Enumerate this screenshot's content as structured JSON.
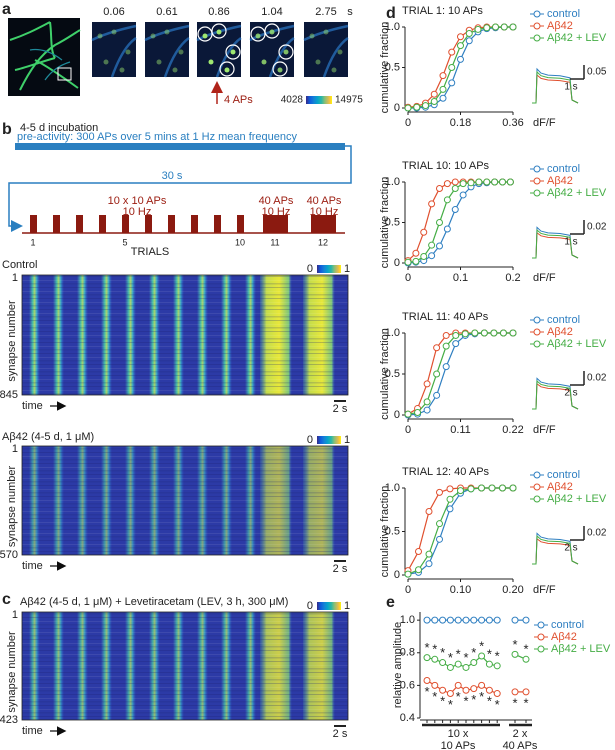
{
  "panel_labels": {
    "a": "a",
    "b": "b",
    "c": "c",
    "d": "d",
    "e": "e"
  },
  "panel_a": {
    "times": [
      "0.06",
      "0.61",
      "0.86",
      "1.04",
      "2.75"
    ],
    "time_unit": "s",
    "stimulus": "4 APs",
    "colorbar": [
      "4028",
      "14975"
    ]
  },
  "panel_b": {
    "incubation": "4-5 d incubation",
    "pre_activity": "pre-activity: 300 APs over 5 mins at 1 Hz mean frequency",
    "interval": "30 s",
    "protocol_labels": [
      [
        "10 x 10 APs",
        "10 Hz"
      ],
      [
        "40 APs",
        "10 Hz"
      ],
      [
        "40 APs",
        "10 Hz"
      ]
    ],
    "trial_numbers": [
      "1",
      "5",
      "10",
      "11",
      "12"
    ],
    "axis_label": "TRIALS"
  },
  "heatmaps": [
    {
      "label": "Control",
      "y_label": "synapse number",
      "y_top": "1",
      "y_bottom": "845",
      "x_label": "time",
      "scale": "2 s",
      "colorbar": [
        "0",
        "1"
      ]
    },
    {
      "label": "Aβ42 (4-5 d, 1 μM)",
      "y_label": "synapse number",
      "y_top": "1",
      "y_bottom": "570",
      "x_label": "time",
      "scale": "2 s",
      "colorbar": [
        "0",
        "1"
      ]
    },
    {
      "label": "Aβ42 (4-5 d, 1 μM) + Levetiracetam (LEV, 3 h, 300 μM)",
      "y_label": "synapse number",
      "y_top": "1",
      "y_bottom": "423",
      "x_label": "time",
      "scale": "2 s",
      "colorbar": [
        "0",
        "1"
      ]
    }
  ],
  "chart_data": [
    {
      "type": "line",
      "title": "TRIAL 1: 10 APs",
      "y_label": "cumulative fraction",
      "x_label": "dF/F",
      "xlim": [
        0,
        0.36
      ],
      "ylim": [
        0,
        1
      ],
      "xticks": [
        0,
        0.18,
        0.36
      ],
      "yticks": [
        0,
        0.5,
        {
          "value": 1,
          "label": "1.0"
        }
      ],
      "x": [
        0,
        0.03,
        0.06,
        0.09,
        0.12,
        0.15,
        0.18,
        0.21,
        0.24,
        0.27,
        0.3,
        0.33,
        0.36
      ],
      "series": [
        {
          "name": "control",
          "color": "#2f7fc1",
          "values": [
            0,
            0,
            0.01,
            0.04,
            0.12,
            0.31,
            0.6,
            0.83,
            0.94,
            0.98,
            0.99,
            1,
            1
          ]
        },
        {
          "name": "Aβ42",
          "color": "#e0502f",
          "values": [
            0.01,
            0.02,
            0.06,
            0.17,
            0.4,
            0.69,
            0.88,
            0.96,
            0.99,
            1,
            1,
            1,
            1
          ]
        },
        {
          "name": "Aβ42 + LEV",
          "color": "#45ad45",
          "values": [
            0,
            0.01,
            0.03,
            0.08,
            0.23,
            0.5,
            0.77,
            0.92,
            0.97,
            0.99,
            1,
            1,
            1
          ]
        }
      ],
      "inset": {
        "y_scale": "0.05",
        "x_scale": "1 s"
      }
    },
    {
      "type": "line",
      "title": "TRIAL 10: 10 APs",
      "y_label": "cumulative fraction",
      "x_label": "dF/F",
      "xlim": [
        0,
        0.2
      ],
      "ylim": [
        0,
        1
      ],
      "xticks": [
        0,
        0.1,
        0.2
      ],
      "yticks": [
        0,
        0.5,
        {
          "value": 1,
          "label": "1.0"
        }
      ],
      "x": [
        0,
        0.015,
        0.03,
        0.045,
        0.06,
        0.075,
        0.09,
        0.105,
        0.12,
        0.135,
        0.15,
        0.165,
        0.18,
        0.195
      ],
      "series": [
        {
          "name": "control",
          "color": "#2f7fc1",
          "values": [
            0,
            0.01,
            0.03,
            0.09,
            0.21,
            0.42,
            0.66,
            0.84,
            0.94,
            0.98,
            0.99,
            1,
            1,
            1
          ]
        },
        {
          "name": "Aβ42",
          "color": "#e0502f",
          "values": [
            0.03,
            0.12,
            0.38,
            0.73,
            0.92,
            0.98,
            1,
            1,
            1,
            1,
            1,
            1,
            1,
            1
          ]
        },
        {
          "name": "Aβ42 + LEV",
          "color": "#45ad45",
          "values": [
            0.01,
            0.02,
            0.08,
            0.22,
            0.5,
            0.78,
            0.92,
            0.98,
            0.99,
            1,
            1,
            1,
            1,
            1
          ]
        }
      ],
      "inset": {
        "y_scale": "0.02",
        "x_scale": "1 s"
      }
    },
    {
      "type": "line",
      "title": "TRIAL 11: 40 APs",
      "y_label": "cumulative fraction",
      "x_label": "dF/F",
      "xlim": [
        0,
        0.22
      ],
      "ylim": [
        0,
        1
      ],
      "xticks": [
        0,
        0.11,
        0.22
      ],
      "yticks": [
        0,
        0.5,
        {
          "value": 1,
          "label": "1.0"
        }
      ],
      "x": [
        0,
        0.02,
        0.04,
        0.06,
        0.08,
        0.1,
        0.12,
        0.14,
        0.16,
        0.18,
        0.2,
        0.22
      ],
      "series": [
        {
          "name": "control",
          "color": "#2f7fc1",
          "values": [
            0,
            0.01,
            0.06,
            0.24,
            0.59,
            0.87,
            0.97,
            0.99,
            1,
            1,
            1,
            1
          ]
        },
        {
          "name": "Aβ42",
          "color": "#e0502f",
          "values": [
            0.01,
            0.08,
            0.38,
            0.82,
            0.97,
            1,
            1,
            1,
            1,
            1,
            1,
            1
          ]
        },
        {
          "name": "Aβ42 + LEV",
          "color": "#45ad45",
          "values": [
            0.01,
            0.03,
            0.16,
            0.5,
            0.84,
            0.97,
            0.99,
            1,
            1,
            1,
            1,
            1
          ]
        }
      ],
      "inset": {
        "y_scale": "0.02",
        "x_scale": "2 s"
      }
    },
    {
      "type": "line",
      "title": "TRIAL 12: 40 APs",
      "y_label": "cumulative fraction",
      "x_label": "dF/F",
      "xlim": [
        0,
        0.2
      ],
      "ylim": [
        0,
        1
      ],
      "xticks": [
        0,
        {
          "value": 0.1,
          "label": "0.10"
        },
        {
          "value": 0.2,
          "label": "0.20"
        }
      ],
      "yticks": [
        0,
        0.5,
        {
          "value": 1,
          "label": "1.0"
        }
      ],
      "x": [
        0,
        0.02,
        0.04,
        0.06,
        0.08,
        0.1,
        0.12,
        0.14,
        0.16,
        0.18,
        0.2
      ],
      "series": [
        {
          "name": "control",
          "color": "#2f7fc1",
          "values": [
            0.01,
            0.03,
            0.13,
            0.41,
            0.76,
            0.94,
            0.99,
            1,
            1,
            1,
            1
          ]
        },
        {
          "name": "Aβ42",
          "color": "#e0502f",
          "values": [
            0.05,
            0.27,
            0.73,
            0.95,
            0.99,
            1,
            1,
            1,
            1,
            1,
            1
          ]
        },
        {
          "name": "Aβ42 + LEV",
          "color": "#45ad45",
          "values": [
            0.01,
            0.06,
            0.24,
            0.59,
            0.87,
            0.97,
            0.99,
            1,
            1,
            1,
            1
          ]
        }
      ],
      "inset": {
        "y_scale": "0.02",
        "x_scale": "2 s"
      }
    },
    {
      "type": "line",
      "y_label": "relative amplitude",
      "categories": [
        null,
        null,
        null,
        null,
        null,
        null,
        null,
        null,
        null,
        null,
        null,
        null
      ],
      "groups": [
        [
          "10 x",
          "10 APs"
        ],
        [
          "2 x",
          "40 APs"
        ]
      ],
      "ylim": [
        0.4,
        1.05
      ],
      "yticks": [
        0.4,
        0.6,
        0.8,
        {
          "value": 1,
          "label": "1.0"
        }
      ],
      "series": [
        {
          "name": "control",
          "color": "#2f7fc1",
          "values": [
            1,
            1,
            1,
            1,
            1,
            1,
            1,
            1,
            1,
            1,
            1,
            1
          ],
          "significance": [
            null,
            null,
            null,
            null,
            null,
            null,
            null,
            null,
            null,
            null,
            null,
            null
          ]
        },
        {
          "name": "Aβ42",
          "color": "#e0502f",
          "values": [
            0.63,
            0.6,
            0.57,
            0.55,
            0.6,
            0.57,
            0.58,
            0.6,
            0.57,
            0.55,
            0.56,
            0.56
          ],
          "significance": [
            "*",
            "*",
            "*",
            "*",
            "*",
            "*",
            "*",
            "*",
            "*",
            "*",
            "*",
            "*"
          ]
        },
        {
          "name": "Aβ42 + LEV",
          "color": "#45ad45",
          "values": [
            0.77,
            0.76,
            0.74,
            0.71,
            0.73,
            0.71,
            0.74,
            0.78,
            0.73,
            0.72,
            0.79,
            0.76
          ],
          "significance": [
            "*",
            "*",
            "*",
            "*",
            "*",
            "*",
            "*",
            "*",
            "*",
            "*",
            "*",
            "*"
          ]
        }
      ]
    }
  ]
}
